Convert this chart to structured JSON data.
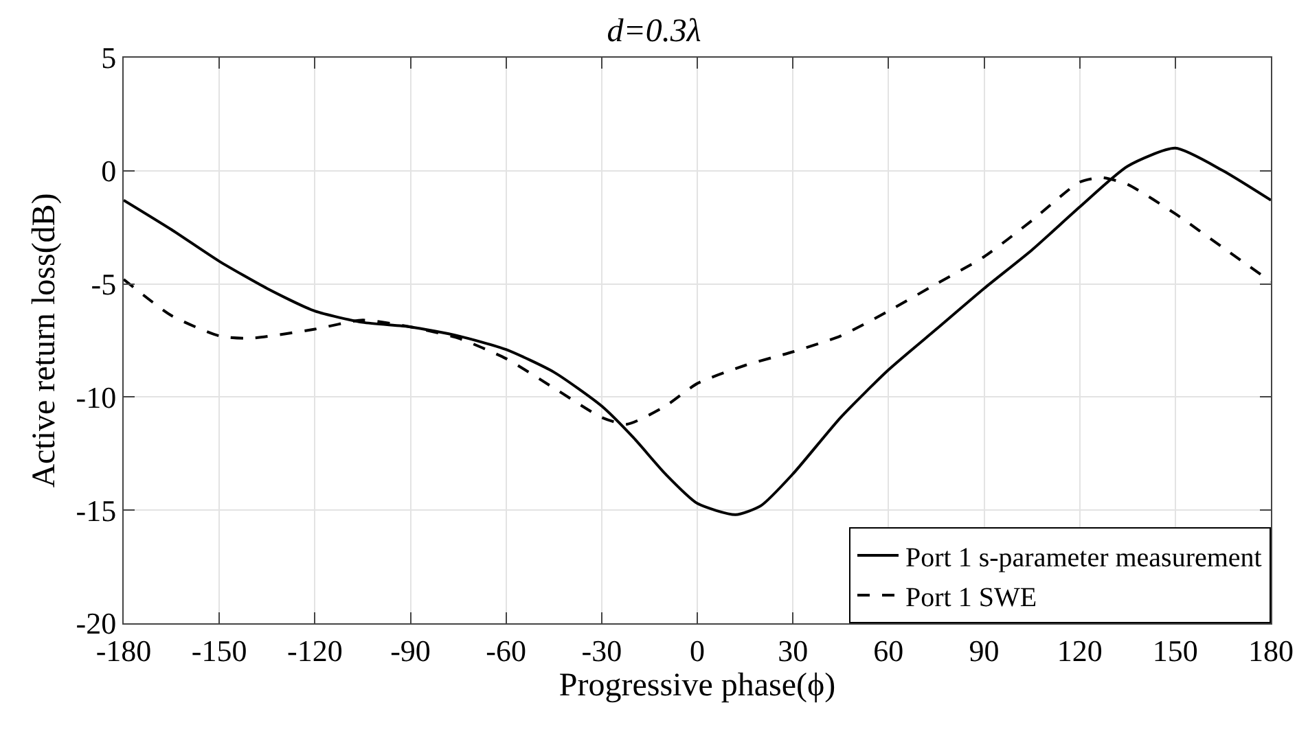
{
  "chart_data": {
    "type": "line",
    "title": "d=0.3λ",
    "xlabel": "Progressive phase(ϕ)",
    "ylabel": "Active return loss(dB)",
    "xlim": [
      -180,
      180
    ],
    "xticks": [
      -180,
      -150,
      -120,
      -90,
      -60,
      -30,
      0,
      30,
      60,
      90,
      120,
      150,
      180
    ],
    "ylim": [
      -20,
      5
    ],
    "yticks": [
      -20,
      -15,
      -10,
      -5,
      0,
      5
    ],
    "grid": true,
    "legend": "bottom right",
    "marker": "none",
    "series": [
      {
        "name": "Port 1 s-parameter measurement",
        "color": "#000000",
        "line_style": "solid",
        "x": [
          -180,
          -165,
          -150,
          -135,
          -120,
          -105,
          -90,
          -75,
          -60,
          -45,
          -30,
          -20,
          -10,
          0,
          12,
          20,
          30,
          45,
          60,
          75,
          90,
          105,
          120,
          135,
          150,
          165,
          180
        ],
        "values": [
          -1.3,
          -2.6,
          -4.0,
          -5.2,
          -6.2,
          -6.7,
          -6.9,
          -7.3,
          -7.9,
          -8.9,
          -10.4,
          -11.8,
          -13.4,
          -14.7,
          -15.2,
          -14.8,
          -13.4,
          -10.9,
          -8.8,
          -7.0,
          -5.2,
          -3.5,
          -1.6,
          0.2,
          1.0,
          0.0,
          -1.3
        ]
      },
      {
        "name": "Port 1 SWE",
        "color": "#000000",
        "line_style": "dashed",
        "x": [
          -180,
          -165,
          -150,
          -140,
          -120,
          -105,
          -90,
          -75,
          -60,
          -45,
          -30,
          -22,
          -10,
          0,
          15,
          30,
          45,
          60,
          75,
          90,
          105,
          120,
          127,
          135,
          150,
          165,
          180
        ],
        "values": [
          -4.8,
          -6.4,
          -7.3,
          -7.4,
          -7.0,
          -6.6,
          -6.9,
          -7.4,
          -8.3,
          -9.6,
          -10.9,
          -11.2,
          -10.4,
          -9.4,
          -8.6,
          -8.0,
          -7.3,
          -6.2,
          -5.0,
          -3.8,
          -2.2,
          -0.5,
          -0.3,
          -0.6,
          -1.9,
          -3.4,
          -4.9
        ]
      }
    ]
  }
}
